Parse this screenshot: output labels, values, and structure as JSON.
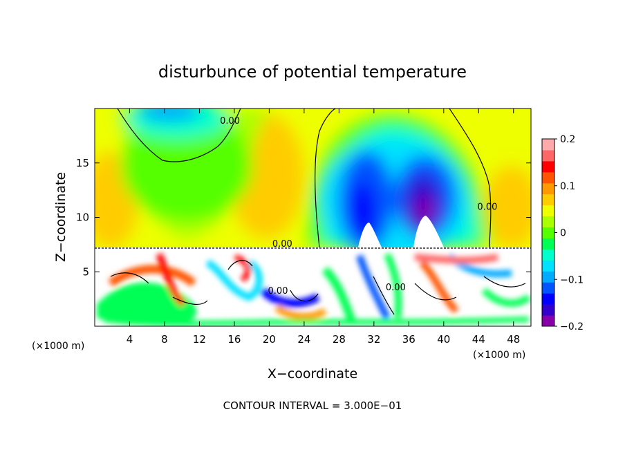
{
  "chart_data": {
    "type": "heatmap",
    "title": "disturbunce of potential temperature",
    "xlabel": "X−coordinate",
    "ylabel": "Z−coordinate",
    "x_unit_left": "(×1000 m)",
    "x_unit_right": "(×1000 m)",
    "footer": "CONTOUR INTERVAL = 3.000E−01",
    "xlim": [
      0,
      50
    ],
    "ylim": [
      0,
      20
    ],
    "x_ticks": [
      4,
      8,
      12,
      16,
      20,
      24,
      28,
      32,
      36,
      40,
      44,
      48
    ],
    "x_tick_labels": [
      "4",
      "8",
      "12",
      "16",
      "20",
      "24",
      "28",
      "32",
      "36",
      "40",
      "44",
      "48"
    ],
    "y_ticks": [
      5,
      10,
      15
    ],
    "y_tick_labels": [
      "5",
      "10",
      "15"
    ],
    "contour_labels": [
      {
        "text": "0.00",
        "x": 15.5,
        "y": 18.6
      },
      {
        "text": "0.00",
        "x": 45.0,
        "y": 10.7
      },
      {
        "text": "0.00",
        "x": 21.5,
        "y": 7.3
      },
      {
        "text": "0.00",
        "x": 21.0,
        "y": 3.0
      },
      {
        "text": "0.00",
        "x": 34.5,
        "y": 3.3
      }
    ],
    "colorbar": {
      "min": -0.2,
      "max": 0.2,
      "tick_values": [
        0.2,
        0.1,
        0,
        -0.1,
        -0.2
      ],
      "tick_labels": [
        "0.2",
        "0.1",
        "0",
        "−0.1",
        "−0.2"
      ],
      "colors": [
        "#8800aa",
        "#3300cc",
        "#0000ff",
        "#0055ff",
        "#00aaff",
        "#00e0ff",
        "#00ffcc",
        "#00ff55",
        "#55ff00",
        "#aaff00",
        "#eeff00",
        "#ffcc00",
        "#ff9900",
        "#ff5500",
        "#ff0000",
        "#ff6666",
        "#ffaaaa"
      ]
    },
    "lower_layer_top_z": 7.3
  }
}
